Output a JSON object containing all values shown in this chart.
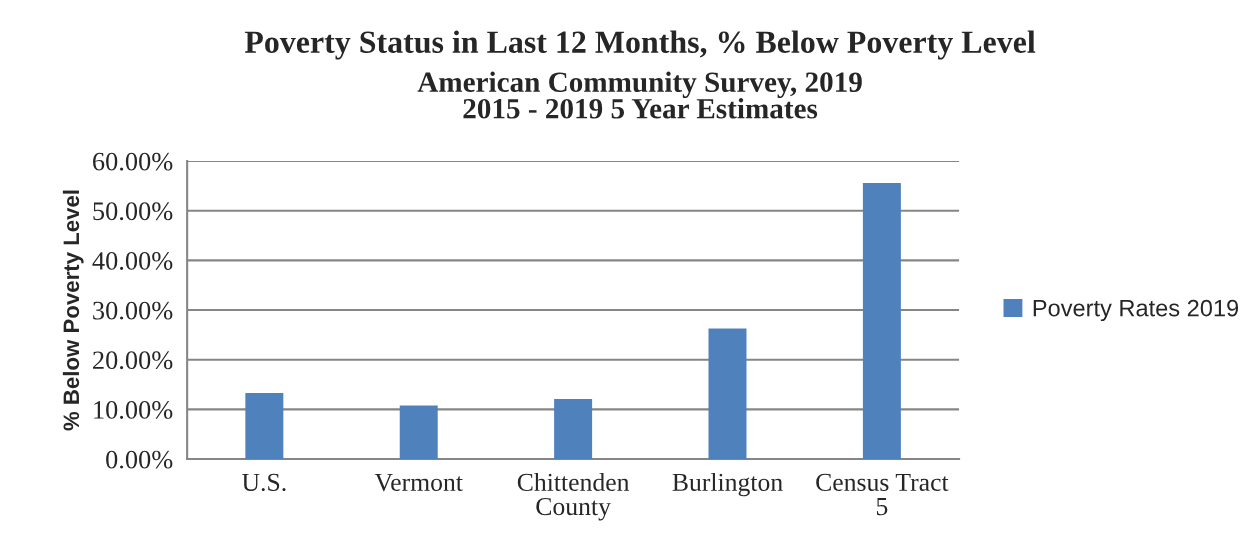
{
  "chart_data": {
    "type": "bar",
    "title": "Poverty Status in Last 12 Months, % Below Poverty Level",
    "subtitle": "American Community Survey, 2019\n2015 - 2019 5 Year Estimates",
    "ylabel": "% Below Poverty Level",
    "categories": [
      "U.S.",
      "Vermont",
      "Chittenden\nCounty",
      "Burlington",
      "Census Tract\n5"
    ],
    "series": [
      {
        "name": "Poverty Rates 2019",
        "color": "#4f81bd",
        "values": [
          13.3,
          10.8,
          12.1,
          26.3,
          55.6
        ]
      }
    ],
    "ylim": [
      0,
      60
    ],
    "yticks": [
      {
        "value": 0,
        "label": "0.00%"
      },
      {
        "value": 10,
        "label": "10.00%"
      },
      {
        "value": 20,
        "label": "20.00%"
      },
      {
        "value": 30,
        "label": "30.00%"
      },
      {
        "value": 40,
        "label": "40.00%"
      },
      {
        "value": 50,
        "label": "50.00%"
      },
      {
        "value": 60,
        "label": "60.00%"
      }
    ],
    "grid": "y",
    "legend": "right"
  }
}
